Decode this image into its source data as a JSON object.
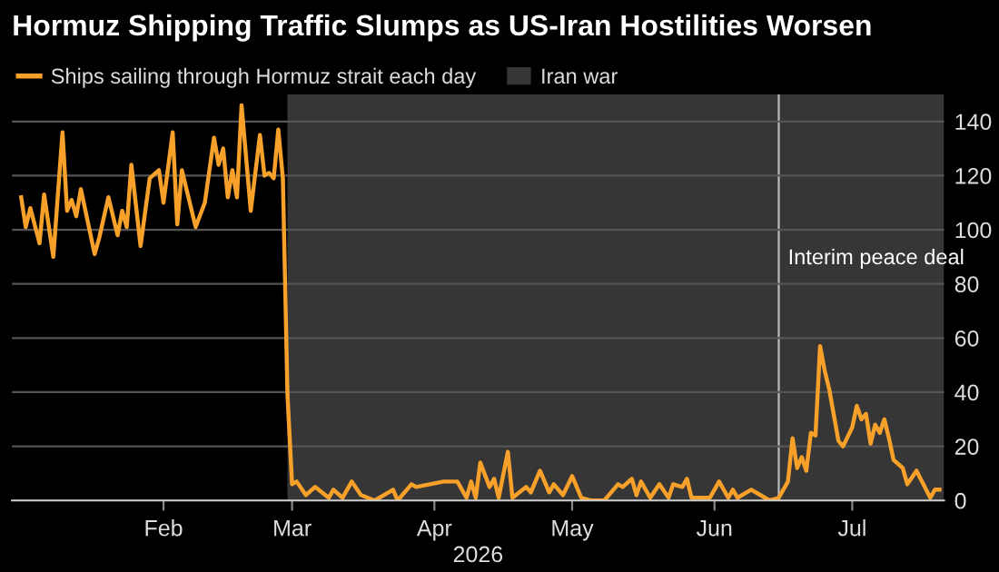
{
  "chart_data": {
    "type": "line",
    "title": "Hormuz Shipping Traffic Slumps as US-Iran Hostilities Worsen",
    "xlabel": "2026",
    "x": [
      "2026-01-01",
      "2026-01-02",
      "2026-01-03",
      "2026-01-05",
      "2026-01-06",
      "2026-01-08",
      "2026-01-10",
      "2026-01-11",
      "2026-01-12",
      "2026-01-13",
      "2026-01-14",
      "2026-01-17",
      "2026-01-18",
      "2026-01-20",
      "2026-01-22",
      "2026-01-23",
      "2026-01-24",
      "2026-01-25",
      "2026-01-27",
      "2026-01-29",
      "2026-01-31",
      "2026-02-01",
      "2026-02-03",
      "2026-02-04",
      "2026-02-05",
      "2026-02-06",
      "2026-02-08",
      "2026-02-10",
      "2026-02-12",
      "2026-02-13",
      "2026-02-14",
      "2026-02-15",
      "2026-02-16",
      "2026-02-17",
      "2026-02-18",
      "2026-02-20",
      "2026-02-22",
      "2026-02-23",
      "2026-02-24",
      "2026-02-25",
      "2026-02-26",
      "2026-02-27",
      "2026-02-28",
      "2026-03-01",
      "2026-03-02",
      "2026-03-04",
      "2026-03-06",
      "2026-03-09",
      "2026-03-10",
      "2026-03-12",
      "2026-03-14",
      "2026-03-16",
      "2026-03-19",
      "2026-03-23",
      "2026-03-24",
      "2026-03-27",
      "2026-03-28",
      "2026-03-31",
      "2026-04-03",
      "2026-04-06",
      "2026-04-08",
      "2026-04-09",
      "2026-04-10",
      "2026-04-11",
      "2026-04-13",
      "2026-04-14",
      "2026-04-15",
      "2026-04-17",
      "2026-04-18",
      "2026-04-21",
      "2026-04-22",
      "2026-04-24",
      "2026-04-26",
      "2026-04-27",
      "2026-04-29",
      "2026-05-01",
      "2026-05-03",
      "2026-05-05",
      "2026-05-08",
      "2026-05-11",
      "2026-05-12",
      "2026-05-14",
      "2026-05-15",
      "2026-05-16",
      "2026-05-18",
      "2026-05-20",
      "2026-05-22",
      "2026-05-23",
      "2026-05-25",
      "2026-05-26",
      "2026-05-27",
      "2026-05-30",
      "2026-05-31",
      "2026-06-02",
      "2026-06-04",
      "2026-06-05",
      "2026-06-06",
      "2026-06-09",
      "2026-06-11",
      "2026-06-12",
      "2026-06-13",
      "2026-06-15",
      "2026-06-17",
      "2026-06-18",
      "2026-06-19",
      "2026-06-20",
      "2026-06-21",
      "2026-06-22",
      "2026-06-23",
      "2026-06-24",
      "2026-06-25",
      "2026-06-26",
      "2026-06-28",
      "2026-06-29",
      "2026-07-01",
      "2026-07-02",
      "2026-07-03",
      "2026-07-04",
      "2026-07-05",
      "2026-07-06",
      "2026-07-07",
      "2026-07-08",
      "2026-07-09",
      "2026-07-10",
      "2026-07-12",
      "2026-07-13",
      "2026-07-15",
      "2026-07-18",
      "2026-07-19",
      "2026-07-20"
    ],
    "series": [
      {
        "name": "Ships sailing through Hormuz strait each day",
        "color": "#f7a12b",
        "values": [
          112,
          101,
          108,
          95,
          113,
          90,
          136,
          107,
          111,
          105,
          115,
          91,
          97,
          112,
          98,
          107,
          101,
          124,
          94,
          119,
          122,
          110,
          136,
          102,
          122,
          115,
          101,
          110,
          134,
          124,
          130,
          112,
          122,
          112,
          146,
          107,
          135,
          120,
          121,
          119,
          137,
          119,
          39,
          6,
          7,
          2,
          5,
          1,
          4,
          1,
          7,
          2,
          0,
          4,
          0,
          6,
          5,
          6,
          7,
          7,
          1,
          7,
          1,
          14,
          5,
          8,
          1,
          18,
          1,
          5,
          3,
          11,
          3,
          6,
          2,
          9,
          1,
          0,
          0,
          6,
          5,
          8,
          2,
          7,
          1,
          6,
          1,
          6,
          5,
          8,
          1,
          1,
          1,
          7,
          1,
          4,
          1,
          4,
          2,
          1,
          0,
          1,
          7,
          23,
          12,
          16,
          11,
          25,
          24,
          57,
          48,
          41,
          22,
          20,
          27,
          35,
          30,
          32,
          21,
          28,
          25,
          30,
          23,
          15,
          12,
          6,
          11,
          1,
          4,
          4
        ]
      }
    ],
    "bands": [
      {
        "axis": "x",
        "from": "2026-02-28",
        "to": "2026-07-21",
        "label": "Iran war",
        "color": "#363636"
      }
    ],
    "ref_lines": [
      {
        "axis": "x",
        "value": "2026-06-15",
        "label": "Interim peace deal",
        "color": "#bbbbbb"
      }
    ],
    "xlim": [
      "2025-12-30",
      "2026-07-21"
    ],
    "xticks": [
      {
        "value": "2026-02-01",
        "label": "Feb"
      },
      {
        "value": "2026-03-01",
        "label": "Mar"
      },
      {
        "value": "2026-04-01",
        "label": "Apr"
      },
      {
        "value": "2026-05-01",
        "label": "May"
      },
      {
        "value": "2026-06-01",
        "label": "Jun"
      },
      {
        "value": "2026-07-01",
        "label": "Jul"
      }
    ],
    "ylim": [
      0,
      150
    ],
    "yticks": [
      0,
      20,
      40,
      60,
      80,
      100,
      120,
      140
    ],
    "grid": "y",
    "legend": "top left",
    "line_style": "solid",
    "marker": "none"
  }
}
